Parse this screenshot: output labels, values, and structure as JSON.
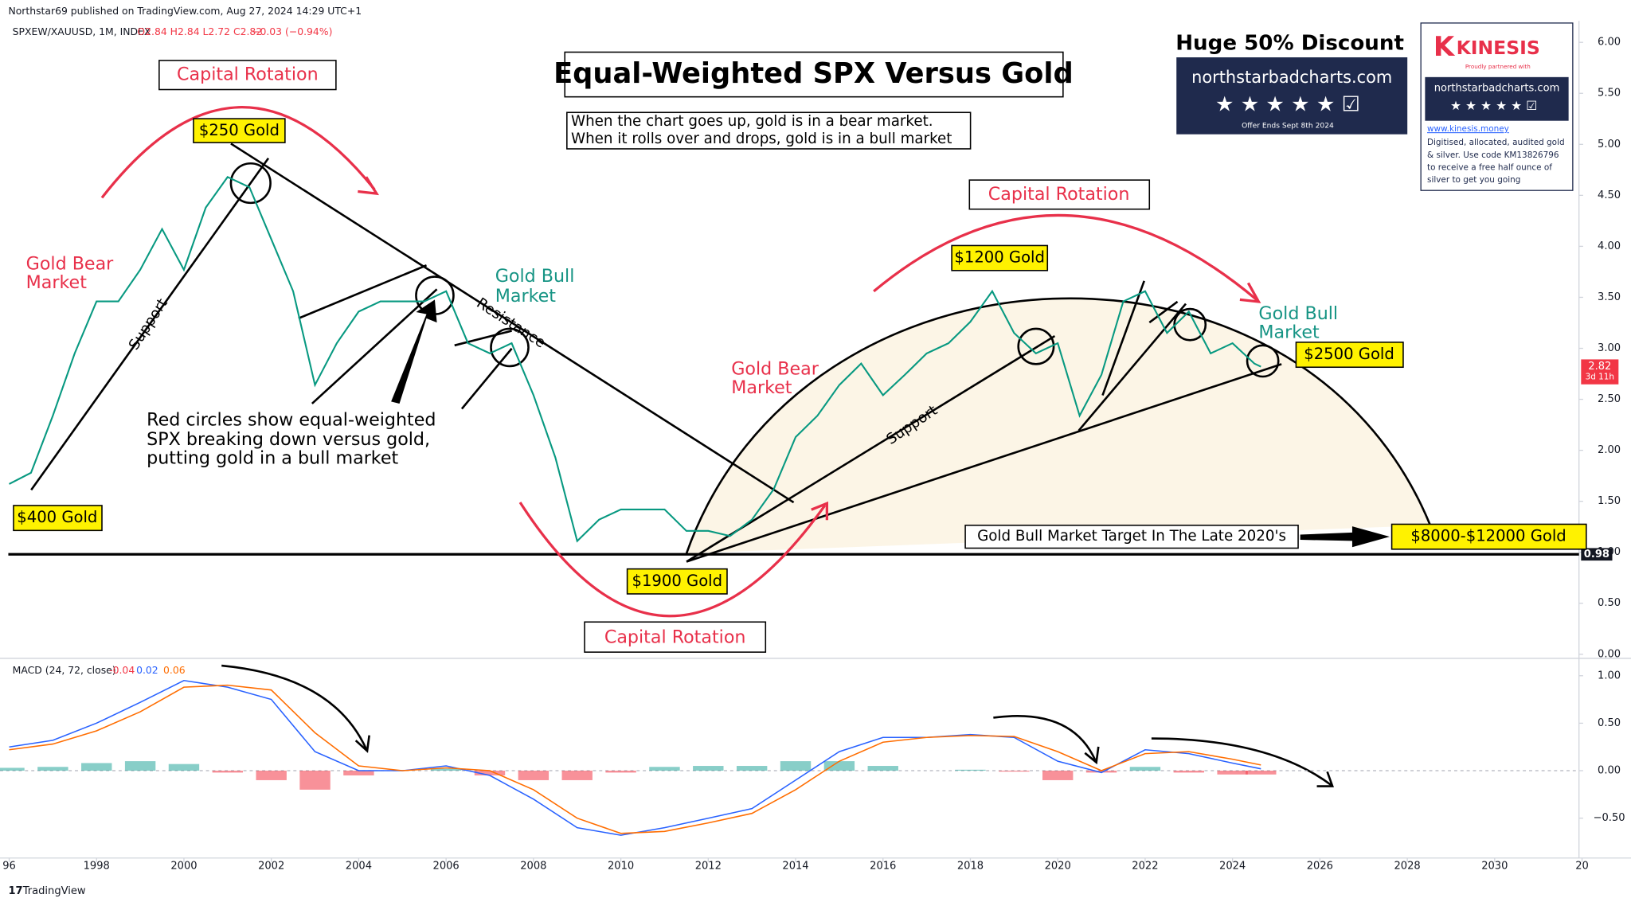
{
  "header": {
    "publisher": "Northstar69 published on TradingView.com, Aug 27, 2024 14:29 UTC+1",
    "symbol": "SPXEW/XAUUSD, 1M, INDEX",
    "ohlc": "O2.84 H2.84 L2.72 C2.82",
    "change": "−0.03 (−0.94%)",
    "footer": "TradingView"
  },
  "annotations": [
    "Equal-Weighted SPX Versus Gold",
    "When the chart goes up, gold is in a bear market.",
    "When it rolls over and drops, gold is in a bull market",
    "Capital Rotation",
    "$250 Gold",
    "Gold Bear",
    "Market",
    "Support",
    "$400 Gold",
    "Gold Bull",
    "Market",
    "Resistance",
    "Red circles show equal-weighted",
    "SPX breaking down versus gold,",
    "putting gold in a bull market",
    "Capital Rotation",
    "$1200 Gold",
    "Gold Bear",
    "Market",
    "Support",
    "Gold Bull",
    "Market",
    "$2500 Gold",
    "Gold Bull Market Target In The Late 2020's",
    "$8000-$12000 Gold",
    "$1900 Gold",
    "Capital Rotation"
  ],
  "ads": {
    "headline": "Huge 50% Discount",
    "site": "northstarbadcharts.com",
    "offer": "Offer Ends Sept 8th 2024",
    "brand": "KINESIS",
    "partner": "Proudly partnered with",
    "partner_site": "northstarbadcharts.com",
    "url": "www.kinesis.money",
    "blurb": [
      "Digitised, allocated, audited gold",
      "& silver. Use code KM13826796",
      "to receive a free half ounce of",
      "silver to get you going"
    ]
  },
  "chart_data": [
    {
      "type": "line",
      "color": "#089981",
      "x": [
        1996,
        1996.5,
        1997,
        1997.5,
        1998,
        1998.5,
        1999,
        1999.5,
        2000,
        2000.5,
        2001,
        2001.5,
        2002,
        2002.5,
        2003,
        2003.5,
        2004,
        2004.5,
        2005,
        2005.5,
        2006,
        2006.5,
        2007,
        2007.5,
        2008,
        2008.5,
        2009,
        2009.5,
        2010,
        2010.5,
        2011,
        2011.5,
        2012,
        2012.5,
        2013,
        2013.5,
        2014,
        2014.5,
        2015,
        2015.5,
        2016,
        2016.5,
        2017,
        2017.5,
        2018,
        2018.5,
        2019,
        2019.5,
        2020,
        2020.5,
        2021,
        2021.5,
        2022,
        2022.5,
        2023,
        2023.5,
        2024,
        2024.5,
        2024.65
      ],
      "values": [
        1.67,
        1.78,
        2.34,
        2.95,
        3.46,
        3.46,
        3.77,
        4.17,
        3.77,
        4.38,
        4.68,
        4.58,
        4.07,
        3.56,
        2.64,
        3.05,
        3.36,
        3.46,
        3.46,
        3.46,
        3.56,
        3.05,
        2.95,
        3.05,
        2.54,
        1.93,
        1.11,
        1.32,
        1.42,
        1.42,
        1.42,
        1.21,
        1.21,
        1.16,
        1.32,
        1.62,
        2.13,
        2.34,
        2.64,
        2.85,
        2.54,
        2.74,
        2.95,
        3.05,
        3.26,
        3.56,
        3.15,
        2.95,
        3.05,
        2.34,
        2.74,
        3.46,
        3.56,
        3.15,
        3.36,
        2.95,
        3.05,
        2.85,
        2.82
      ],
      "xlim": [
        1995.79,
        2031.93
      ],
      "xticks": [
        {
          "value": 1996,
          "label": "96"
        },
        1998,
        2000,
        2002,
        2004,
        2006,
        2008,
        2010,
        2012,
        2014,
        2016,
        2018,
        2020,
        2022,
        2024,
        2026,
        2028,
        2030,
        {
          "value": 2032,
          "label": "20"
        }
      ],
      "ylim": [
        -0.03,
        6.21
      ],
      "yticks": [
        {
          "value": 0,
          "label": "0.00"
        },
        {
          "value": 0.5,
          "label": "0.50"
        },
        {
          "value": 1,
          "label": "1.00"
        },
        {
          "value": 1.5,
          "label": "1.50"
        },
        {
          "value": 2,
          "label": "2.00"
        },
        {
          "value": 2.5,
          "label": "2.50"
        },
        {
          "value": 3,
          "label": "3.00"
        },
        {
          "value": 3.5,
          "label": "3.50"
        },
        {
          "value": 4,
          "label": "4.00"
        },
        {
          "value": 4.5,
          "label": "4.50"
        },
        {
          "value": 5,
          "label": "5.00"
        },
        {
          "value": 5.5,
          "label": "5.50"
        },
        {
          "value": 6,
          "label": "6.00"
        }
      ],
      "current_price": 2.82,
      "countdown": "3d 11h",
      "hline": 0.98
    },
    {
      "type": "macd",
      "title": "MACD (24, 72, close)",
      "x": [
        1996,
        1997,
        1998,
        1999,
        2000,
        2001,
        2002,
        2003,
        2004,
        2005,
        2006,
        2007,
        2008,
        2009,
        2010,
        2011,
        2012,
        2013,
        2014,
        2015,
        2016,
        2017,
        2018,
        2019,
        2020,
        2021,
        2022,
        2023,
        2024,
        2024.65
      ],
      "series": [
        {
          "color": "#f23645",
          "kind": "histogram",
          "current": -0.04,
          "values": [
            0.03,
            0.04,
            0.08,
            0.1,
            0.07,
            -0.02,
            -0.1,
            -0.2,
            -0.05,
            0,
            0.02,
            -0.05,
            -0.1,
            -0.1,
            -0.02,
            0.04,
            0.05,
            0.05,
            0.1,
            0.1,
            0.05,
            0,
            0.01,
            -0.01,
            -0.1,
            -0.02,
            0.04,
            -0.02,
            -0.04,
            -0.04
          ]
        },
        {
          "color": "#2962ff",
          "kind": "line",
          "current": 0.02,
          "values": [
            0.25,
            0.32,
            0.5,
            0.72,
            0.95,
            0.88,
            0.75,
            0.2,
            0.0,
            0.0,
            0.05,
            -0.05,
            -0.3,
            -0.6,
            -0.68,
            -0.6,
            -0.5,
            -0.4,
            -0.1,
            0.2,
            0.35,
            0.35,
            0.38,
            0.35,
            0.1,
            -0.02,
            0.22,
            0.18,
            0.08,
            0.02
          ]
        },
        {
          "color": "#ff6d00",
          "kind": "line",
          "current": 0.06,
          "values": [
            0.22,
            0.28,
            0.42,
            0.62,
            0.88,
            0.9,
            0.85,
            0.4,
            0.05,
            0.0,
            0.03,
            0.0,
            -0.2,
            -0.5,
            -0.66,
            -0.64,
            -0.55,
            -0.45,
            -0.2,
            0.1,
            0.3,
            0.35,
            0.37,
            0.36,
            0.2,
            0.0,
            0.18,
            0.2,
            0.12,
            0.06
          ]
        }
      ],
      "ylim": [
        -0.92,
        1.15
      ],
      "yticks": [
        {
          "value": 1,
          "label": "1.00"
        },
        {
          "value": 0.5,
          "label": "0.50"
        },
        {
          "value": 0,
          "label": "0.00"
        },
        {
          "value": -0.5,
          "label": "−0.50"
        }
      ]
    }
  ]
}
